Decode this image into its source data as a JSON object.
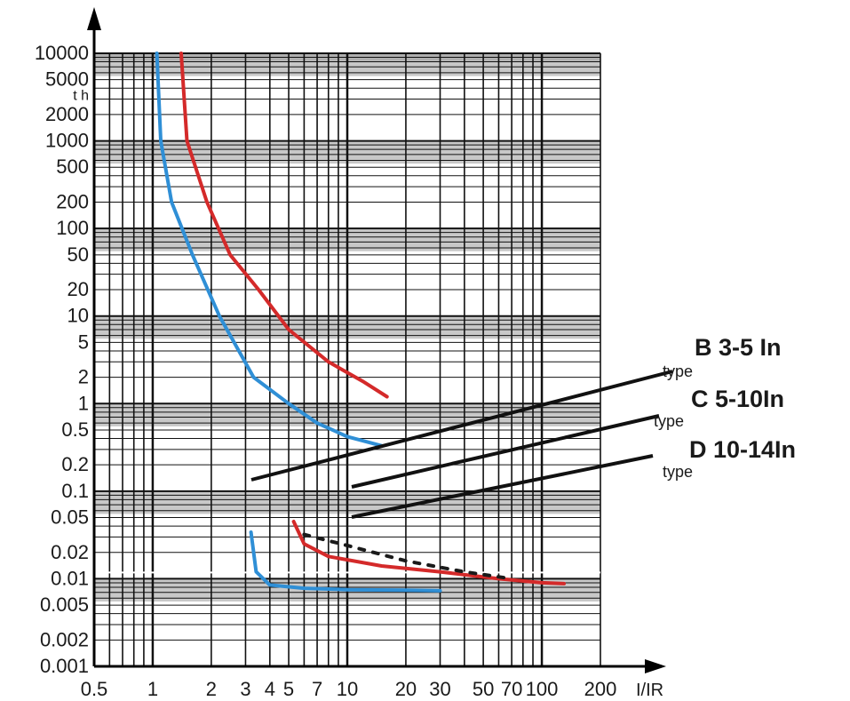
{
  "chart_data": {
    "type": "line",
    "title": "",
    "xlabel": "I/IR",
    "ylabel": "",
    "ylabel_inside": "t h",
    "x_scale": "log",
    "y_scale": "log",
    "xlim": [
      0.5,
      200
    ],
    "ylim": [
      0.001,
      10000
    ],
    "grid": true,
    "x_ticks": [
      0.5,
      1,
      2,
      3,
      4,
      5,
      7,
      10,
      20,
      30,
      50,
      70,
      100,
      200
    ],
    "x_tick_labels": [
      "0.5",
      "1",
      "2",
      "3",
      "4",
      "5",
      "7",
      "10",
      "20",
      "30",
      "50",
      "70",
      "100",
      "200"
    ],
    "y_ticks": [
      10000,
      5000,
      2000,
      1000,
      500,
      200,
      100,
      50,
      20,
      10,
      5,
      2,
      1,
      0.5,
      0.2,
      0.1,
      0.05,
      0.02,
      0.01,
      0.005,
      0.002,
      0.001
    ],
    "y_tick_labels": [
      "10000",
      "5000",
      "2000",
      "1000",
      "500",
      "200",
      "100",
      "50",
      "20",
      "10",
      "5",
      "2",
      "1",
      "0.5",
      "0.2",
      "0.1",
      "0.05",
      "0.02",
      "0.01",
      "0.005",
      "0.002",
      "0.001"
    ],
    "legend": [
      {
        "label": "B 3-5 In",
        "sub": "type"
      },
      {
        "label": "C 5-10In",
        "sub": "type"
      },
      {
        "label": "D 10-14In",
        "sub": "type"
      }
    ],
    "series": [
      {
        "color": "#2f8fd6",
        "points": [
          [
            1.05,
            10000
          ],
          [
            1.1,
            1000
          ],
          [
            1.25,
            200
          ],
          [
            1.6,
            50
          ],
          [
            2.2,
            10
          ],
          [
            3.3,
            2
          ],
          [
            5,
            1
          ],
          [
            7,
            0.6
          ],
          [
            10,
            0.42
          ],
          [
            15,
            0.33
          ]
        ]
      },
      {
        "color": "#2f8fd6",
        "points": [
          [
            3.2,
            0.034
          ],
          [
            3.4,
            0.012
          ],
          [
            4,
            0.0085
          ],
          [
            6,
            0.0078
          ],
          [
            10,
            0.0075
          ],
          [
            20,
            0.0074
          ],
          [
            30,
            0.0073
          ]
        ]
      },
      {
        "color": "#d42a2a",
        "points": [
          [
            1.4,
            10000
          ],
          [
            1.5,
            1000
          ],
          [
            1.9,
            200
          ],
          [
            2.5,
            50
          ],
          [
            3.5,
            20
          ],
          [
            5,
            7
          ],
          [
            8,
            3
          ],
          [
            12,
            1.8
          ],
          [
            16,
            1.2
          ]
        ]
      },
      {
        "color": "#d42a2a",
        "points": [
          [
            5.3,
            0.045
          ],
          [
            6,
            0.025
          ],
          [
            8,
            0.018
          ],
          [
            15,
            0.014
          ],
          [
            30,
            0.012
          ],
          [
            60,
            0.01
          ],
          [
            100,
            0.009
          ],
          [
            130,
            0.0088
          ]
        ]
      },
      {
        "color": "#1a1a1a",
        "dashed": true,
        "points": [
          [
            6,
            0.032
          ],
          [
            10,
            0.024
          ],
          [
            20,
            0.016
          ],
          [
            40,
            0.012
          ],
          [
            70,
            0.01
          ]
        ]
      }
    ]
  }
}
